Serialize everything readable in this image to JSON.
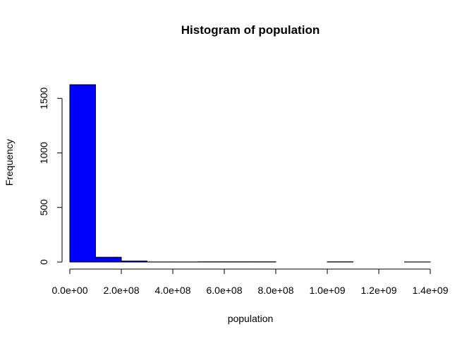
{
  "chart_data": {
    "type": "histogram",
    "title": "Histogram of population",
    "xlabel": "population",
    "ylabel": "Frequency",
    "bar_color": "#0000ff",
    "bar_border_color": "#000000",
    "bin_width": 100000000,
    "bins": [
      {
        "start": 0,
        "end": 100000000,
        "count": 1625
      },
      {
        "start": 100000000,
        "end": 200000000,
        "count": 44
      },
      {
        "start": 200000000,
        "end": 300000000,
        "count": 9
      },
      {
        "start": 300000000,
        "end": 400000000,
        "count": 1
      },
      {
        "start": 400000000,
        "end": 500000000,
        "count": 1
      },
      {
        "start": 500000000,
        "end": 600000000,
        "count": 2
      },
      {
        "start": 600000000,
        "end": 700000000,
        "count": 2
      },
      {
        "start": 700000000,
        "end": 800000000,
        "count": 2
      },
      {
        "start": 800000000,
        "end": 900000000,
        "count": 0
      },
      {
        "start": 900000000,
        "end": 1000000000,
        "count": 0
      },
      {
        "start": 1000000000,
        "end": 1100000000,
        "count": 2
      },
      {
        "start": 1100000000,
        "end": 1200000000,
        "count": 0
      },
      {
        "start": 1200000000,
        "end": 1300000000,
        "count": 0
      },
      {
        "start": 1300000000,
        "end": 1400000000,
        "count": 1
      }
    ],
    "xlim": [
      0,
      1400000000
    ],
    "ylim": [
      0,
      1650
    ],
    "x_ticks": [
      {
        "value": 0,
        "label": "0.0e+00"
      },
      {
        "value": 200000000,
        "label": "2.0e+08"
      },
      {
        "value": 400000000,
        "label": "4.0e+08"
      },
      {
        "value": 600000000,
        "label": "6.0e+08"
      },
      {
        "value": 800000000,
        "label": "8.0e+08"
      },
      {
        "value": 1000000000,
        "label": "1.0e+09"
      },
      {
        "value": 1200000000,
        "label": "1.2e+09"
      },
      {
        "value": 1400000000,
        "label": "1.4e+09"
      }
    ],
    "y_ticks": [
      {
        "value": 0,
        "label": "0"
      },
      {
        "value": 500,
        "label": "500"
      },
      {
        "value": 1000,
        "label": "1000"
      },
      {
        "value": 1500,
        "label": "1500"
      }
    ],
    "grid": false,
    "legend": "none"
  }
}
